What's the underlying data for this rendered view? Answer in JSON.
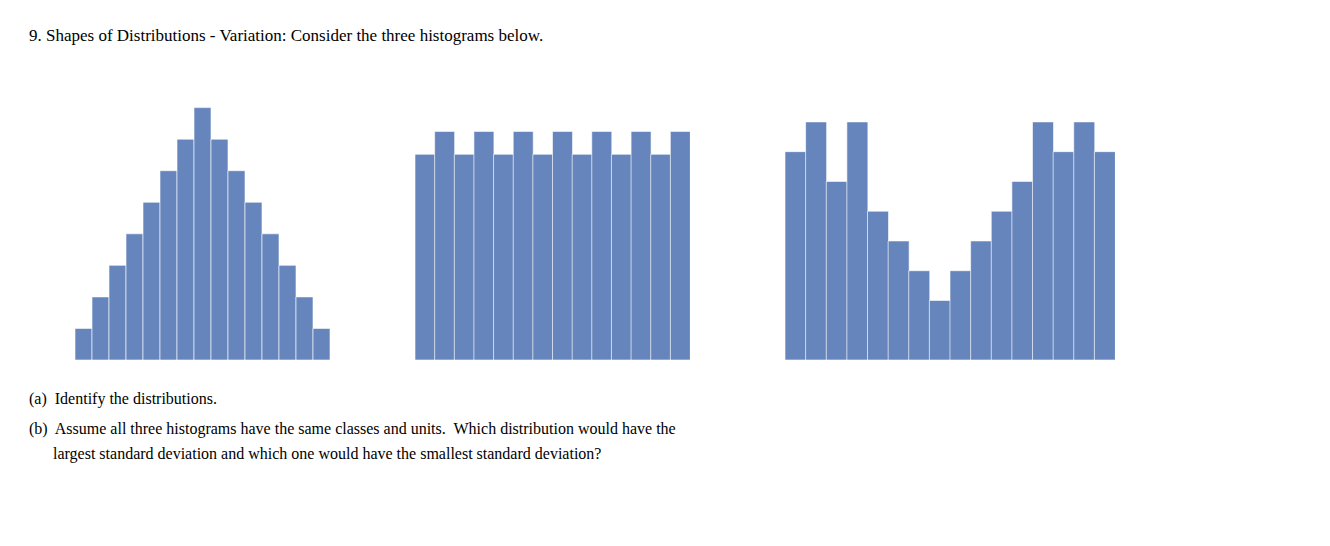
{
  "chart_data": [
    {
      "type": "bar",
      "title": "9. Shapes of Distributions - Variation: Consider the three histograms below.",
      "annotations": [
        "(a)  Identify the distributions.",
        "(b)  Assume all three histograms have the same classes and units.  Which distribution would have the",
        "      largest standard deviation and which one would have the smallest standard deviation?"
      ],
      "values": [
        1,
        2,
        3,
        4,
        5,
        6,
        7,
        8,
        7,
        6,
        5,
        4,
        3,
        2,
        1
      ],
      "color": "#6685bc",
      "ylim": [
        0,
        8.4
      ],
      "tick_labels": false,
      "grid": false
    },
    {
      "type": "bar",
      "values": [
        9,
        10,
        9,
        10,
        9,
        10,
        9,
        10,
        9,
        10,
        9,
        10,
        9,
        10
      ],
      "color": "#6685bc",
      "ylim": [
        0,
        10.5
      ],
      "tick_labels": false,
      "grid": false
    },
    {
      "type": "bar",
      "values": [
        7,
        8,
        6,
        8,
        5,
        4,
        3,
        2,
        3,
        4,
        5,
        6,
        8,
        7,
        8,
        7
      ],
      "color": "#6685bc",
      "ylim": [
        0,
        8.4
      ],
      "tick_labels": false,
      "grid": false
    }
  ]
}
